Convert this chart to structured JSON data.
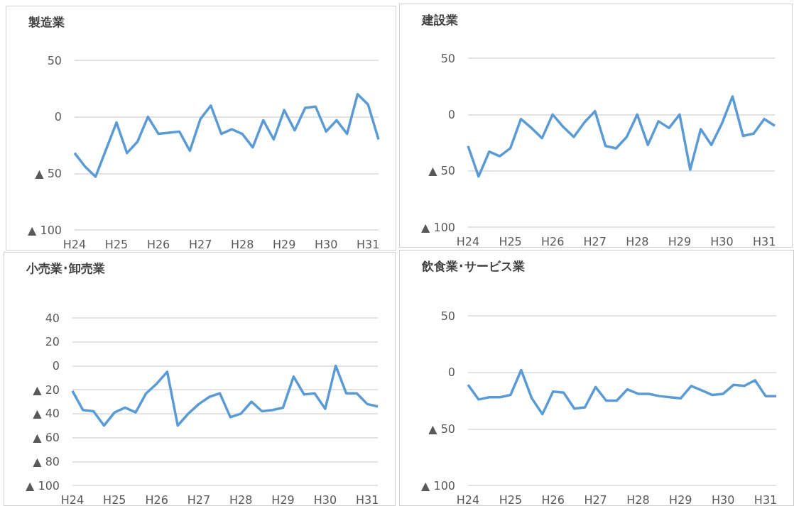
{
  "chart_data": [
    {
      "type": "line",
      "title": "製造業",
      "categories": [
        "H24",
        null,
        null,
        null,
        "H25",
        null,
        null,
        null,
        "H26",
        null,
        null,
        null,
        "H27",
        null,
        null,
        null,
        "H28",
        null,
        null,
        null,
        "H29",
        null,
        null,
        null,
        "H30",
        null,
        null,
        null,
        "H31",
        null
      ],
      "series": [
        {
          "color": "#5b9bd5",
          "values": [
            -32,
            -44,
            -53,
            -29,
            -5,
            -32,
            -22,
            0,
            -15,
            -14,
            -13,
            -30,
            -2,
            10,
            -15,
            -11,
            -15,
            -27,
            -3,
            -20,
            6,
            -12,
            8,
            9,
            -13,
            -3,
            -15,
            20,
            11,
            -20
          ]
        }
      ],
      "ylim": [
        -100,
        50
      ],
      "yticks": [
        {
          "value": -100,
          "label": "▲ 100"
        },
        {
          "value": -50,
          "label": "▲ 50"
        },
        0,
        50
      ],
      "grid": "y",
      "marker": "none"
    },
    {
      "type": "line",
      "title": "建設業",
      "categories": [
        "H24",
        null,
        null,
        null,
        "H25",
        null,
        null,
        null,
        "H26",
        null,
        null,
        null,
        "H27",
        null,
        null,
        null,
        "H28",
        null,
        null,
        null,
        "H29",
        null,
        null,
        null,
        "H30",
        null,
        null,
        null,
        "H31",
        null
      ],
      "series": [
        {
          "color": "#5b9bd5",
          "values": [
            -28,
            -55,
            -33,
            -37,
            -30,
            -4,
            -12,
            -21,
            0,
            -11,
            -20,
            -7,
            3,
            -28,
            -30,
            -20,
            0,
            -27,
            -6,
            -12,
            0,
            -49,
            -13,
            -27,
            -8,
            16,
            -19,
            -17,
            -4,
            -10
          ]
        }
      ],
      "ylim": [
        -100,
        50
      ],
      "yticks": [
        {
          "value": -100,
          "label": "▲ 100"
        },
        {
          "value": -50,
          "label": "▲ 50"
        },
        0,
        50
      ],
      "grid": "y",
      "marker": "none"
    },
    {
      "type": "line",
      "title": "小売業･卸売業",
      "categories": [
        "H24",
        null,
        null,
        null,
        "H25",
        null,
        null,
        null,
        "H26",
        null,
        null,
        null,
        "H27",
        null,
        null,
        null,
        "H28",
        null,
        null,
        null,
        "H29",
        null,
        null,
        null,
        "H30",
        null,
        null,
        null,
        "H31",
        null
      ],
      "series": [
        {
          "color": "#5b9bd5",
          "values": [
            -21,
            -37,
            -38,
            -50,
            -39,
            -35,
            -39,
            -23,
            -15,
            -5,
            -50,
            -40,
            -32,
            -26,
            -23,
            -43,
            -40,
            -30,
            -38,
            -37,
            -35,
            -9,
            -24,
            -23,
            -36,
            0,
            -23,
            -23,
            -32,
            -34
          ]
        }
      ],
      "ylim": [
        -100,
        40
      ],
      "yticks": [
        {
          "value": -100,
          "label": "▲ 100"
        },
        {
          "value": -80,
          "label": "▲ 80"
        },
        {
          "value": -60,
          "label": "▲ 60"
        },
        {
          "value": -40,
          "label": "▲ 40"
        },
        {
          "value": -20,
          "label": "▲ 20"
        },
        0,
        20,
        40
      ],
      "grid": "y",
      "marker": "none"
    },
    {
      "type": "line",
      "title": "飲食業･サービス業",
      "categories": [
        "H24",
        null,
        null,
        null,
        "H25",
        null,
        null,
        null,
        "H26",
        null,
        null,
        null,
        "H27",
        null,
        null,
        null,
        "H28",
        null,
        null,
        null,
        "H29",
        null,
        null,
        null,
        "H30",
        null,
        null,
        null,
        "H31",
        null
      ],
      "series": [
        {
          "color": "#5b9bd5",
          "values": [
            -11,
            -24,
            -22,
            -22,
            -20,
            2,
            -23,
            -37,
            -17,
            -18,
            -32,
            -31,
            -13,
            -25,
            -25,
            -15,
            -19,
            -19,
            -21,
            -22,
            -23,
            -12,
            -16,
            -20,
            -19,
            -11,
            -12,
            -7,
            -21,
            -21
          ]
        }
      ],
      "ylim": [
        -100,
        50
      ],
      "yticks": [
        {
          "value": -100,
          "label": "▲ 100"
        },
        {
          "value": -50,
          "label": "▲ 50"
        },
        0,
        50
      ],
      "grid": "y",
      "marker": "none"
    }
  ]
}
